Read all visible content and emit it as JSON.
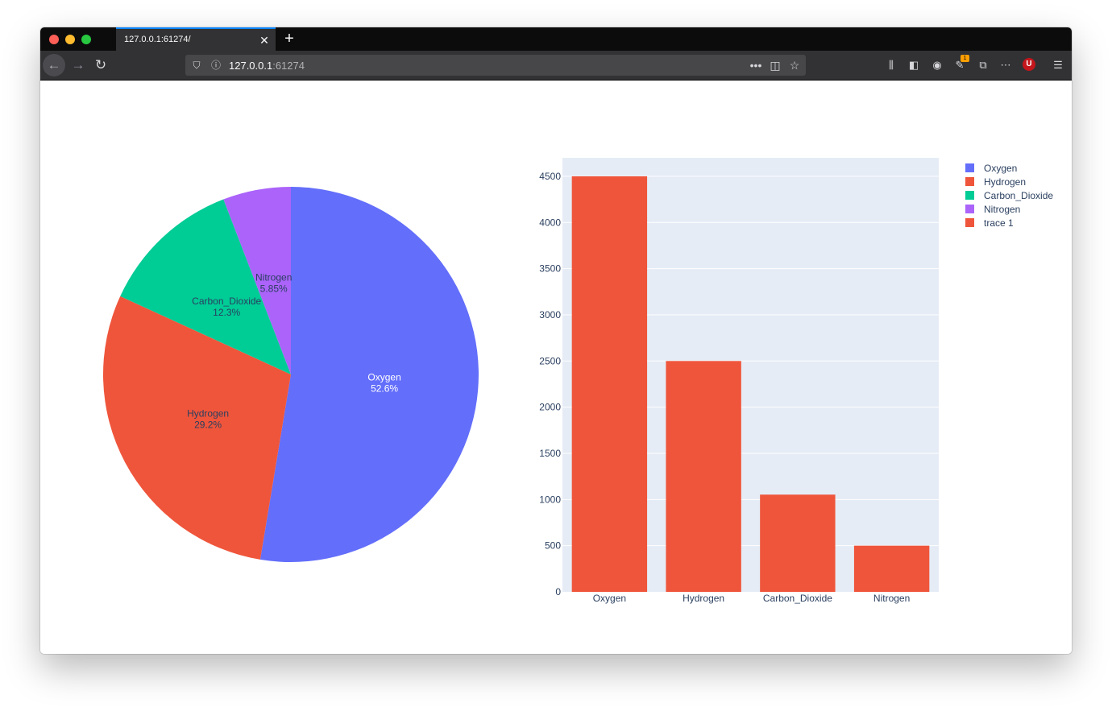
{
  "browser": {
    "tab_title": "127.0.0.1:61274/",
    "url_host": "127.0.0.1",
    "url_port": ":61274",
    "badge_count": "1",
    "ublock_letter": "U"
  },
  "colors": {
    "oxygen": "#636efa",
    "hydrogen": "#ef553b",
    "carbon_dioxide": "#00cc96",
    "nitrogen": "#ab63fa",
    "trace1": "#ef553b",
    "plot_bg": "#e5ecf6"
  },
  "chart_data": [
    {
      "type": "pie",
      "labels": [
        "Oxygen",
        "Hydrogen",
        "Carbon_Dioxide",
        "Nitrogen"
      ],
      "values": [
        4500,
        2500,
        1053,
        500
      ],
      "percent_labels": [
        "52.6%",
        "29.2%",
        "12.3%",
        "5.85%"
      ],
      "colors": [
        "#636efa",
        "#ef553b",
        "#00cc96",
        "#ab63fa"
      ],
      "direction": "clockwise",
      "sort": "descending"
    },
    {
      "type": "bar",
      "categories": [
        "Oxygen",
        "Hydrogen",
        "Carbon_Dioxide",
        "Nitrogen"
      ],
      "series": [
        {
          "name": "trace 1",
          "values": [
            4500,
            2500,
            1053,
            500
          ],
          "color": "#ef553b"
        }
      ],
      "ylim": [
        0,
        4700
      ],
      "yticks": [
        0,
        500,
        1000,
        1500,
        2000,
        2500,
        3000,
        3500,
        4000,
        4500
      ],
      "grid": true
    }
  ],
  "legend": {
    "placement": "top-right",
    "items": [
      {
        "label": "Oxygen",
        "color": "#636efa"
      },
      {
        "label": "Hydrogen",
        "color": "#ef553b"
      },
      {
        "label": "Carbon_Dioxide",
        "color": "#00cc96"
      },
      {
        "label": "Nitrogen",
        "color": "#ab63fa"
      },
      {
        "label": "trace 1",
        "color": "#ef553b"
      }
    ]
  }
}
